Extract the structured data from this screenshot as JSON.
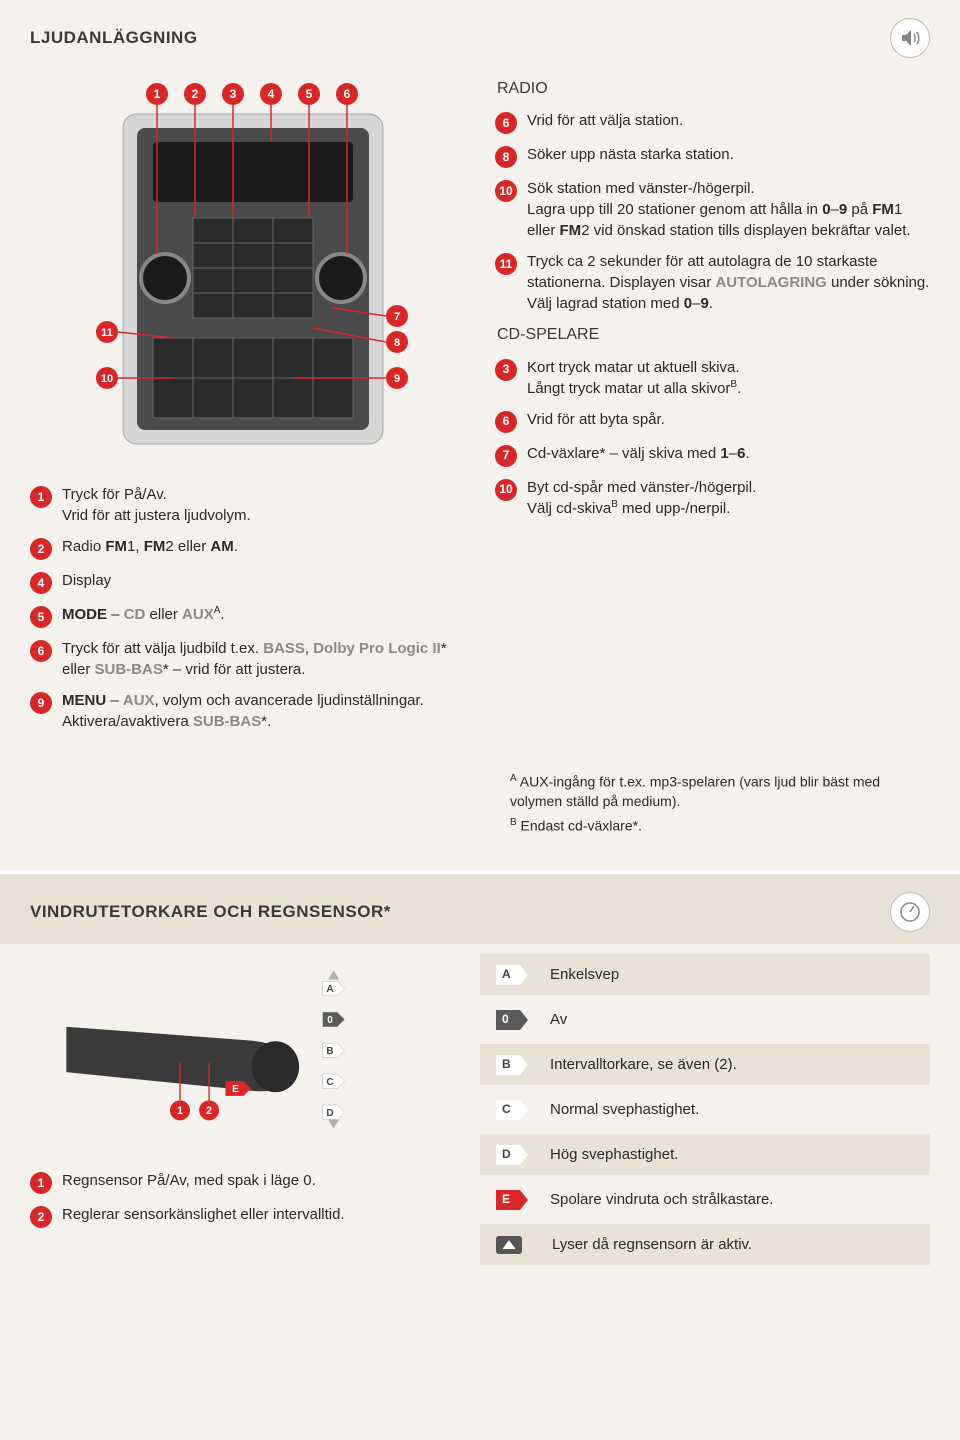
{
  "section1": {
    "title": "LJUDANLÄGGNING",
    "left_items": [
      {
        "n": "1",
        "html": "Tryck för På/Av.<br>Vrid för att justera ljudvolym."
      },
      {
        "n": "2",
        "html": "Radio <b>FM</b>1, <b>FM</b>2 eller <b>AM</b>."
      },
      {
        "n": "4",
        "html": "Display"
      },
      {
        "n": "5",
        "html": "<b>MODE</b> – <span class='gray-em'>CD</span> eller <span class='gray-em'>AUX</span><span class='sup'>A</span>."
      },
      {
        "n": "6",
        "html": "Tryck för att välja ljudbild t.ex. <span class='gray-em'>BASS</span>, <span class='gray-em'>Dolby Pro Logic II</span>* eller <span class='gray-em'>SUB-BAS</span>* – vrid för att justera."
      },
      {
        "n": "9",
        "html": "<b>MENU</b> – <span class='gray-em'>AUX</span>, volym och avancerade ljudinställningar.<br>Aktivera/avaktivera <span class='gray-em'>SUB-BAS</span>*."
      }
    ],
    "radio_heading": "RADIO",
    "radio_items": [
      {
        "n": "6",
        "html": "Vrid för att välja station."
      },
      {
        "n": "8",
        "html": "Söker upp nästa starka station."
      },
      {
        "n": "10",
        "html": "Sök station med vänster-/högerpil.<br>Lagra upp till 20 stationer genom att hålla in <b>0</b>–<b>9</b> på <b>FM</b>1 eller <b>FM</b>2 vid önskad station tills displayen bekräftar valet."
      },
      {
        "n": "11",
        "html": "Tryck ca 2 sekunder för att autolagra de 10 starkaste stationerna. Displayen visar <span class='gray-em'>AUTOLAGRING</span> under sökning.<br>Välj lagrad station med <b>0</b>–<b>9</b>."
      }
    ],
    "cd_heading": "CD-SPELARE",
    "cd_items": [
      {
        "n": "3",
        "html": "Kort tryck matar ut aktuell skiva.<br>Långt tryck matar ut alla skivor<span class='sup'>B</span>."
      },
      {
        "n": "6",
        "html": "Vrid för att byta spår."
      },
      {
        "n": "7",
        "html": "Cd-växlare* – välj skiva med <b>1</b>–<b>6</b>."
      },
      {
        "n": "10",
        "html": "Byt cd-spår med vänster-/högerpil.<br>Välj cd-skiva<span class='sup'>B</span> med upp-/nerpil."
      }
    ],
    "footnotes": [
      "<span class='sup'>A</span> AUX-ingång för t.ex. mp3-spelaren (vars ljud blir bäst med volymen ställd på medium).",
      "<span class='sup'>B</span> Endast cd-växlare*."
    ],
    "diagram": {
      "callout_numbers_top": [
        "1",
        "2",
        "3",
        "4",
        "5",
        "6"
      ],
      "callout_numbers_side": [
        "11",
        "10",
        "7",
        "8",
        "9"
      ],
      "marker_color": "#d62828"
    }
  },
  "section2": {
    "title": "VINDRUTETORKARE OCH REGNSENSOR*",
    "left_items": [
      {
        "n": "1",
        "text": "Regnsensor På/Av, med spak i läge 0."
      },
      {
        "n": "2",
        "text": "Reglerar sensorkänslighet eller intervalltid."
      }
    ],
    "rows": [
      {
        "badge": "A",
        "cls": "white",
        "alt": true,
        "text": "Enkelsvep"
      },
      {
        "badge": "0",
        "cls": "gray",
        "alt": false,
        "text": "Av"
      },
      {
        "badge": "B",
        "cls": "white",
        "alt": true,
        "text": "Intervalltorkare, se även (2)."
      },
      {
        "badge": "C",
        "cls": "white",
        "alt": false,
        "text": "Normal svephastighet."
      },
      {
        "badge": "D",
        "cls": "white",
        "alt": true,
        "text": "Hög svephastighet."
      },
      {
        "badge": "E",
        "cls": "red",
        "alt": false,
        "text": "Spolare vindruta och strålkastare."
      },
      {
        "icon": true,
        "alt": true,
        "text": "Lyser då regnsensorn är aktiv."
      }
    ],
    "stalk_diagram": {
      "callout_numbers": [
        "1",
        "2"
      ],
      "side_badges": [
        "A",
        "0",
        "B",
        "C",
        "D"
      ],
      "wash_badge": "E"
    }
  },
  "colors": {
    "accent_red": "#d62828",
    "panel_beige": "#e9e2d6",
    "page_bg": "#f5f2ed"
  }
}
